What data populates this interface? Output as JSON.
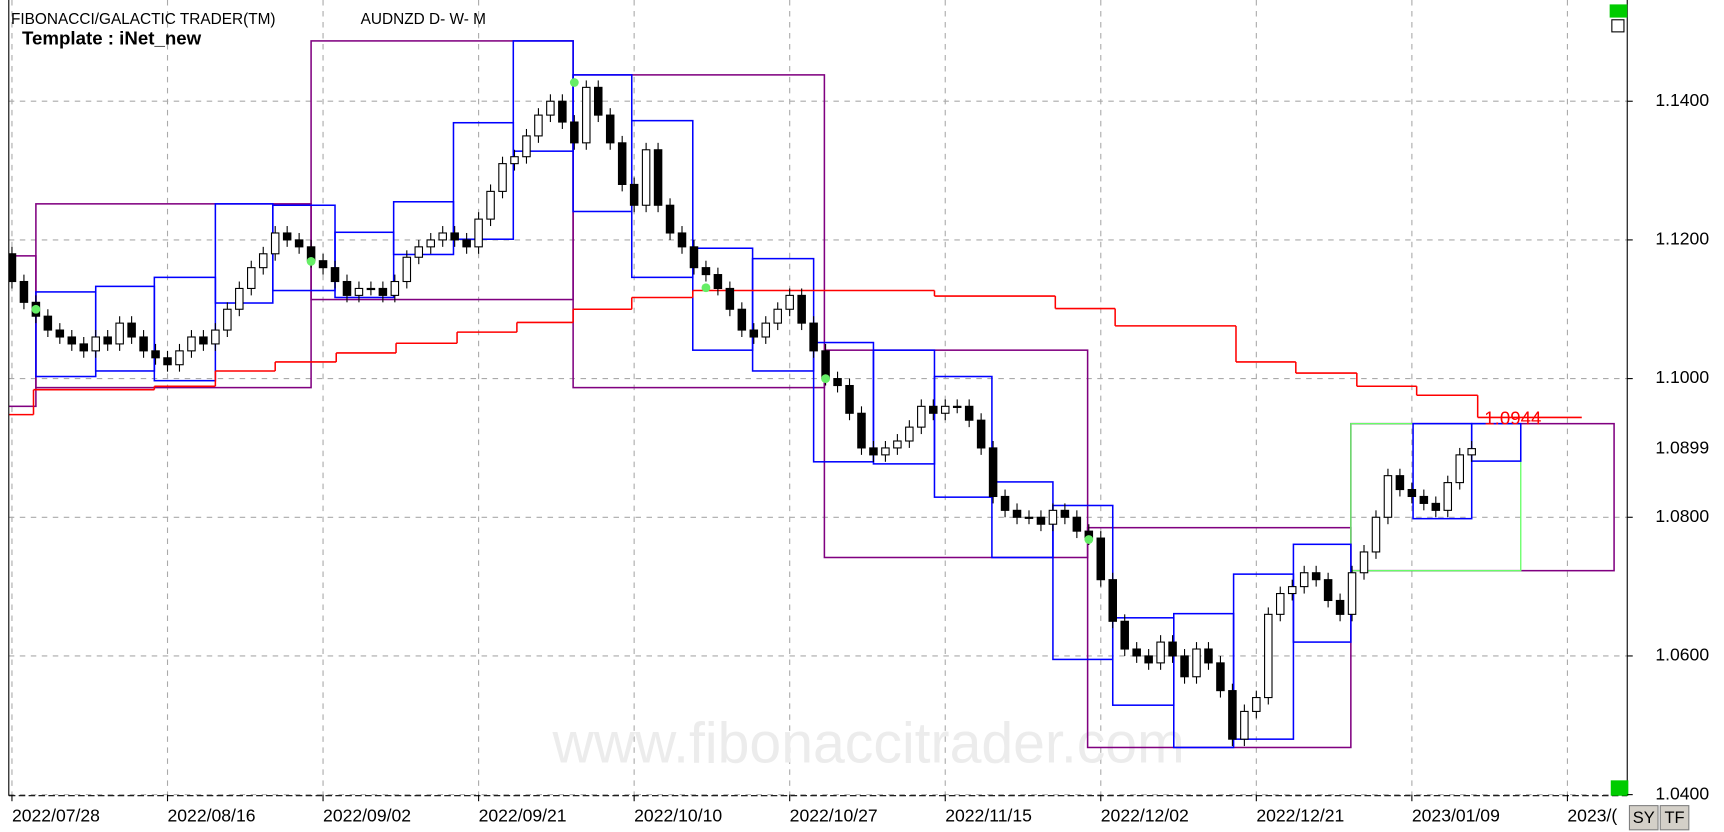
{
  "chart_data": {
    "type": "candlestick",
    "title": "FIBONACCI/GALACTIC TRADER(TM)",
    "symbol": "AUDNZD D- W- M",
    "template": "Template : iNet_new",
    "watermark": "www.fibonaccitrader.com",
    "up_color": "#ffffff",
    "down_color": "#000000",
    "grid": true,
    "xlim": [
      -1,
      135
    ],
    "ylim": [
      1.04,
      1.1546
    ],
    "yticks": [
      {
        "value": 1.14,
        "label": "1.1400"
      },
      {
        "value": 1.12,
        "label": "1.1200"
      },
      {
        "value": 1.1,
        "label": "1.1000"
      },
      {
        "value": 1.08,
        "label": "1.0800"
      },
      {
        "value": 1.06,
        "label": "1.0600"
      },
      {
        "value": 1.04,
        "label": "1.0400"
      }
    ],
    "xticks": [
      {
        "value": 0,
        "label": "2022/07/28"
      },
      {
        "value": 13,
        "label": "2022/08/16"
      },
      {
        "value": 26,
        "label": "2022/09/02"
      },
      {
        "value": 39,
        "label": "2022/09/21"
      },
      {
        "value": 52,
        "label": "2022/10/10"
      },
      {
        "value": 65,
        "label": "2022/10/27"
      },
      {
        "value": 78,
        "label": "2022/11/15"
      },
      {
        "value": 91,
        "label": "2022/12/02"
      },
      {
        "value": 104,
        "label": "2022/12/21"
      },
      {
        "value": 117,
        "label": "2023/01/09"
      },
      {
        "value": 130,
        "label": "2023/("
      }
    ],
    "ohlc": [
      [
        1.118,
        1.119,
        1.113,
        1.114
      ],
      [
        1.114,
        1.115,
        1.11,
        1.111
      ],
      [
        1.111,
        1.112,
        1.108,
        1.109
      ],
      [
        1.109,
        1.11,
        1.106,
        1.107
      ],
      [
        1.107,
        1.108,
        1.105,
        1.106
      ],
      [
        1.106,
        1.107,
        1.104,
        1.105
      ],
      [
        1.105,
        1.106,
        1.103,
        1.104
      ],
      [
        1.104,
        1.107,
        1.103,
        1.106
      ],
      [
        1.106,
        1.107,
        1.104,
        1.105
      ],
      [
        1.105,
        1.109,
        1.104,
        1.108
      ],
      [
        1.108,
        1.109,
        1.105,
        1.106
      ],
      [
        1.106,
        1.107,
        1.103,
        1.104
      ],
      [
        1.104,
        1.105,
        1.102,
        1.103
      ],
      [
        1.103,
        1.104,
        1.101,
        1.102
      ],
      [
        1.102,
        1.105,
        1.101,
        1.104
      ],
      [
        1.104,
        1.107,
        1.103,
        1.106
      ],
      [
        1.106,
        1.107,
        1.104,
        1.105
      ],
      [
        1.105,
        1.108,
        1.104,
        1.107
      ],
      [
        1.107,
        1.111,
        1.106,
        1.11
      ],
      [
        1.11,
        1.114,
        1.109,
        1.113
      ],
      [
        1.113,
        1.117,
        1.112,
        1.116
      ],
      [
        1.116,
        1.119,
        1.115,
        1.118
      ],
      [
        1.118,
        1.122,
        1.117,
        1.121
      ],
      [
        1.121,
        1.122,
        1.119,
        1.12
      ],
      [
        1.12,
        1.121,
        1.118,
        1.119
      ],
      [
        1.119,
        1.12,
        1.116,
        1.117
      ],
      [
        1.117,
        1.118,
        1.115,
        1.116
      ],
      [
        1.116,
        1.117,
        1.113,
        1.114
      ],
      [
        1.114,
        1.115,
        1.111,
        1.112
      ],
      [
        1.112,
        1.114,
        1.111,
        1.113
      ],
      [
        1.113,
        1.114,
        1.112,
        1.113
      ],
      [
        1.113,
        1.114,
        1.111,
        1.112
      ],
      [
        1.112,
        1.115,
        1.111,
        1.114
      ],
      [
        1.114,
        1.1185,
        1.113,
        1.1175
      ],
      [
        1.1175,
        1.12,
        1.1165,
        1.119
      ],
      [
        1.119,
        1.121,
        1.118,
        1.12
      ],
      [
        1.12,
        1.122,
        1.119,
        1.121
      ],
      [
        1.121,
        1.122,
        1.119,
        1.12
      ],
      [
        1.12,
        1.121,
        1.118,
        1.119
      ],
      [
        1.119,
        1.124,
        1.118,
        1.123
      ],
      [
        1.123,
        1.128,
        1.122,
        1.127
      ],
      [
        1.127,
        1.132,
        1.126,
        1.131
      ],
      [
        1.131,
        1.133,
        1.13,
        1.132
      ],
      [
        1.132,
        1.136,
        1.131,
        1.135
      ],
      [
        1.135,
        1.139,
        1.134,
        1.138
      ],
      [
        1.138,
        1.141,
        1.137,
        1.14
      ],
      [
        1.14,
        1.141,
        1.136,
        1.137
      ],
      [
        1.137,
        1.138,
        1.133,
        1.134
      ],
      [
        1.134,
        1.143,
        1.133,
        1.142
      ],
      [
        1.142,
        1.143,
        1.137,
        1.138
      ],
      [
        1.138,
        1.139,
        1.133,
        1.134
      ],
      [
        1.134,
        1.135,
        1.127,
        1.128
      ],
      [
        1.128,
        1.129,
        1.124,
        1.125
      ],
      [
        1.125,
        1.134,
        1.124,
        1.133
      ],
      [
        1.133,
        1.134,
        1.124,
        1.125
      ],
      [
        1.125,
        1.126,
        1.12,
        1.121
      ],
      [
        1.121,
        1.122,
        1.118,
        1.119
      ],
      [
        1.119,
        1.12,
        1.115,
        1.116
      ],
      [
        1.116,
        1.117,
        1.114,
        1.115
      ],
      [
        1.115,
        1.116,
        1.112,
        1.113
      ],
      [
        1.113,
        1.114,
        1.109,
        1.11
      ],
      [
        1.11,
        1.111,
        1.106,
        1.107
      ],
      [
        1.107,
        1.108,
        1.105,
        1.106
      ],
      [
        1.106,
        1.109,
        1.105,
        1.108
      ],
      [
        1.108,
        1.111,
        1.107,
        1.11
      ],
      [
        1.11,
        1.113,
        1.109,
        1.112
      ],
      [
        1.112,
        1.113,
        1.107,
        1.108
      ],
      [
        1.108,
        1.109,
        1.103,
        1.104
      ],
      [
        1.104,
        1.105,
        1.099,
        1.1
      ],
      [
        1.1,
        1.101,
        1.098,
        1.099
      ],
      [
        1.099,
        1.1,
        1.094,
        1.095
      ],
      [
        1.095,
        1.096,
        1.089,
        1.09
      ],
      [
        1.09,
        1.091,
        1.088,
        1.089
      ],
      [
        1.089,
        1.091,
        1.088,
        1.09
      ],
      [
        1.09,
        1.092,
        1.089,
        1.091
      ],
      [
        1.091,
        1.094,
        1.09,
        1.093
      ],
      [
        1.093,
        1.097,
        1.092,
        1.096
      ],
      [
        1.096,
        1.097,
        1.094,
        1.095
      ],
      [
        1.095,
        1.097,
        1.094,
        1.096
      ],
      [
        1.096,
        1.097,
        1.095,
        1.096
      ],
      [
        1.096,
        1.097,
        1.093,
        1.094
      ],
      [
        1.094,
        1.095,
        1.089,
        1.09
      ],
      [
        1.09,
        1.091,
        1.082,
        1.083
      ],
      [
        1.083,
        1.084,
        1.08,
        1.081
      ],
      [
        1.081,
        1.082,
        1.079,
        1.08
      ],
      [
        1.08,
        1.081,
        1.079,
        1.08
      ],
      [
        1.08,
        1.081,
        1.078,
        1.079
      ],
      [
        1.079,
        1.082,
        1.078,
        1.081
      ],
      [
        1.081,
        1.082,
        1.079,
        1.08
      ],
      [
        1.08,
        1.081,
        1.077,
        1.078
      ],
      [
        1.078,
        1.079,
        1.076,
        1.077
      ],
      [
        1.077,
        1.078,
        1.07,
        1.071
      ],
      [
        1.071,
        1.072,
        1.064,
        1.065
      ],
      [
        1.065,
        1.066,
        1.06,
        1.061
      ],
      [
        1.061,
        1.062,
        1.059,
        1.06
      ],
      [
        1.06,
        1.061,
        1.058,
        1.059
      ],
      [
        1.059,
        1.063,
        1.058,
        1.062
      ],
      [
        1.062,
        1.063,
        1.059,
        1.06
      ],
      [
        1.06,
        1.061,
        1.056,
        1.057
      ],
      [
        1.057,
        1.062,
        1.056,
        1.061
      ],
      [
        1.061,
        1.062,
        1.058,
        1.059
      ],
      [
        1.059,
        1.06,
        1.054,
        1.055
      ],
      [
        1.055,
        1.056,
        1.047,
        1.048
      ],
      [
        1.048,
        1.053,
        1.047,
        1.052
      ],
      [
        1.052,
        1.055,
        1.051,
        1.054
      ],
      [
        1.054,
        1.067,
        1.053,
        1.066
      ],
      [
        1.066,
        1.07,
        1.065,
        1.069
      ],
      [
        1.069,
        1.071,
        1.068,
        1.07
      ],
      [
        1.07,
        1.073,
        1.069,
        1.072
      ],
      [
        1.072,
        1.073,
        1.07,
        1.071
      ],
      [
        1.071,
        1.072,
        1.067,
        1.068
      ],
      [
        1.068,
        1.069,
        1.065,
        1.066
      ],
      [
        1.066,
        1.073,
        1.065,
        1.072
      ],
      [
        1.072,
        1.076,
        1.071,
        1.075
      ],
      [
        1.075,
        1.081,
        1.074,
        1.08
      ],
      [
        1.08,
        1.087,
        1.079,
        1.086
      ],
      [
        1.086,
        1.087,
        1.083,
        1.084
      ],
      [
        1.084,
        1.085,
        1.082,
        1.083
      ],
      [
        1.083,
        1.084,
        1.081,
        1.082
      ],
      [
        1.082,
        1.083,
        1.08,
        1.081
      ],
      [
        1.081,
        1.086,
        1.08,
        1.085
      ],
      [
        1.085,
        1.09,
        1.084,
        1.089
      ],
      [
        1.089,
        1.091,
        1.088,
        1.0899
      ]
    ],
    "monthly_boxes": {
      "color": "#800080",
      "boxes": [
        {
          "x": [
            -1,
            2.0
          ],
          "y": [
            1.1177,
            1.096
          ]
        },
        {
          "x": [
            2.0,
            25.0
          ],
          "y": [
            1.1252,
            1.0987
          ]
        },
        {
          "x": [
            25.0,
            46.9
          ],
          "y": [
            1.1487,
            1.1114
          ]
        },
        {
          "x": [
            46.9,
            67.9
          ],
          "y": [
            1.1438,
            1.0987
          ]
        },
        {
          "x": [
            67.9,
            89.9
          ],
          "y": [
            1.1041,
            1.0742
          ]
        },
        {
          "x": [
            89.9,
            111.9
          ],
          "y": [
            1.0785,
            1.0468
          ]
        },
        {
          "x": [
            111.9,
            133.9
          ],
          "y": [
            1.0935,
            1.0723
          ]
        }
      ]
    },
    "weekly_boxes": {
      "color": "#0000ff",
      "boxes": [
        {
          "x": [
            2.0,
            7.0
          ],
          "y": [
            1.1125,
            1.1003
          ]
        },
        {
          "x": [
            7.0,
            11.9
          ],
          "y": [
            1.1133,
            1.1011
          ]
        },
        {
          "x": [
            11.9,
            17.0
          ],
          "y": [
            1.1146,
            1.0997
          ]
        },
        {
          "x": [
            17.0,
            21.8
          ],
          "y": [
            1.1252,
            1.1109
          ]
        },
        {
          "x": [
            21.8,
            27.0
          ],
          "y": [
            1.125,
            1.1127
          ]
        },
        {
          "x": [
            27.0,
            31.9
          ],
          "y": [
            1.1211,
            1.1117
          ]
        },
        {
          "x": [
            31.9,
            36.9
          ],
          "y": [
            1.1255,
            1.1179
          ]
        },
        {
          "x": [
            36.9,
            41.9
          ],
          "y": [
            1.1369,
            1.1201
          ]
        },
        {
          "x": [
            41.9,
            46.9
          ],
          "y": [
            1.1487,
            1.1328
          ]
        },
        {
          "x": [
            46.9,
            51.8
          ],
          "y": [
            1.1438,
            1.1241
          ]
        },
        {
          "x": [
            51.8,
            56.9
          ],
          "y": [
            1.1372,
            1.1146
          ]
        },
        {
          "x": [
            56.9,
            61.9
          ],
          "y": [
            1.1188,
            1.1041
          ]
        },
        {
          "x": [
            61.9,
            67.0
          ],
          "y": [
            1.1173,
            1.1011
          ]
        },
        {
          "x": [
            67.0,
            72.0
          ],
          "y": [
            1.1052,
            1.088
          ]
        },
        {
          "x": [
            72.0,
            77.1
          ],
          "y": [
            1.1041,
            1.0877
          ]
        },
        {
          "x": [
            77.1,
            81.9
          ],
          "y": [
            1.1003,
            1.0829
          ]
        },
        {
          "x": [
            81.9,
            87.0
          ],
          "y": [
            1.0851,
            1.0742
          ]
        },
        {
          "x": [
            87.0,
            92.0
          ],
          "y": [
            1.0817,
            1.0595
          ]
        },
        {
          "x": [
            92.0,
            97.1
          ],
          "y": [
            1.0655,
            1.0529
          ]
        },
        {
          "x": [
            97.1,
            102.1
          ],
          "y": [
            1.0661,
            1.0468
          ]
        },
        {
          "x": [
            102.1,
            107.1
          ],
          "y": [
            1.0718,
            1.048
          ]
        },
        {
          "x": [
            107.1,
            111.9
          ],
          "y": [
            1.0761,
            1.062
          ]
        },
        {
          "x": [
            117.1,
            122.0
          ],
          "y": [
            1.0935,
            1.0798
          ]
        },
        {
          "x": [
            122.0,
            126.1
          ],
          "y": [
            1.0935,
            1.0881
          ]
        }
      ]
    },
    "green_boxes": {
      "color": "#66ff66",
      "boxes": [
        {
          "x": [
            111.9,
            126.1
          ],
          "y": [
            1.0935,
            1.0723
          ]
        }
      ]
    },
    "red_line": {
      "color": "#ff0000",
      "segments": [
        [
          -1,
          1.8,
          1.0948
        ],
        [
          1.8,
          11.9,
          1.0984
        ],
        [
          11.9,
          17.0,
          1.0989
        ],
        [
          17.0,
          22.0,
          1.1011
        ],
        [
          22.0,
          27.1,
          1.1024
        ],
        [
          27.1,
          32.1,
          1.1037
        ],
        [
          32.1,
          37.2,
          1.1051
        ],
        [
          37.2,
          42.2,
          1.1067
        ],
        [
          42.2,
          46.9,
          1.1081
        ],
        [
          46.9,
          51.8,
          1.11
        ],
        [
          51.8,
          56.9,
          1.1117
        ],
        [
          56.9,
          77.1,
          1.1127
        ],
        [
          77.1,
          87.2,
          1.1119
        ],
        [
          87.2,
          92.2,
          1.1101
        ],
        [
          92.2,
          102.3,
          1.1076
        ],
        [
          102.3,
          107.3,
          1.1024
        ],
        [
          107.3,
          112.4,
          1.1008
        ],
        [
          112.4,
          117.4,
          1.0989
        ],
        [
          117.4,
          122.5,
          1.0976
        ],
        [
          122.5,
          131.2,
          1.0944
        ]
      ]
    },
    "markers": {
      "color": "#66ee66",
      "points": [
        [
          2,
          1.11
        ],
        [
          25,
          1.1169
        ],
        [
          47,
          1.1427
        ],
        [
          58,
          1.1131
        ],
        [
          68,
          1.1
        ],
        [
          90,
          1.0768
        ]
      ]
    },
    "last_price": 1.0899,
    "buttons": [
      "SY",
      "TF"
    ]
  }
}
